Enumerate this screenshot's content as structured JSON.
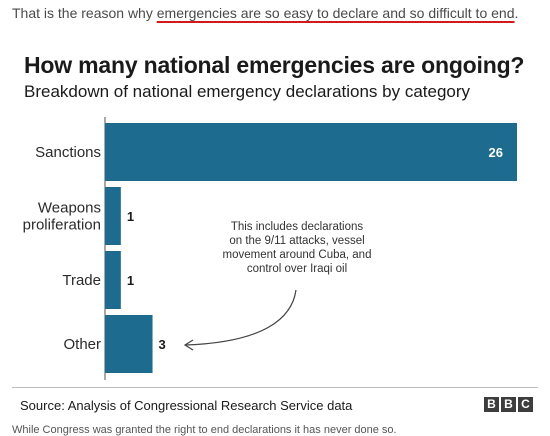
{
  "intro": {
    "prefix": "That is the reason why ",
    "highlight": "emergencies are so easy to declare and so difficult to end",
    "suffix": "."
  },
  "chart_data": {
    "type": "bar",
    "orientation": "horizontal",
    "title": "How many national emergencies are ongoing?",
    "subtitle": "Breakdown of national emergency declarations by category",
    "categories": [
      "Sanctions",
      "Weapons\nproliferation",
      "Trade",
      "Other"
    ],
    "values": [
      26,
      1,
      1,
      3
    ],
    "value_labels": [
      "26",
      "1",
      "1",
      "3"
    ],
    "bar_color": "#1d6b8f",
    "annotation": {
      "lines": [
        "This includes declarations",
        "on the 9/11 attacks, vessel",
        "movement around Cuba, and",
        "control over Iraqi oil"
      ],
      "points_to": "Other"
    },
    "xlim": [
      0,
      26
    ],
    "grid": false
  },
  "footer": {
    "source": "Source: Analysis of Congressional Research Service data",
    "logo_letters": [
      "B",
      "B",
      "C"
    ]
  },
  "trailing_text": "While Congress was granted the right to end declarations it has never done so."
}
